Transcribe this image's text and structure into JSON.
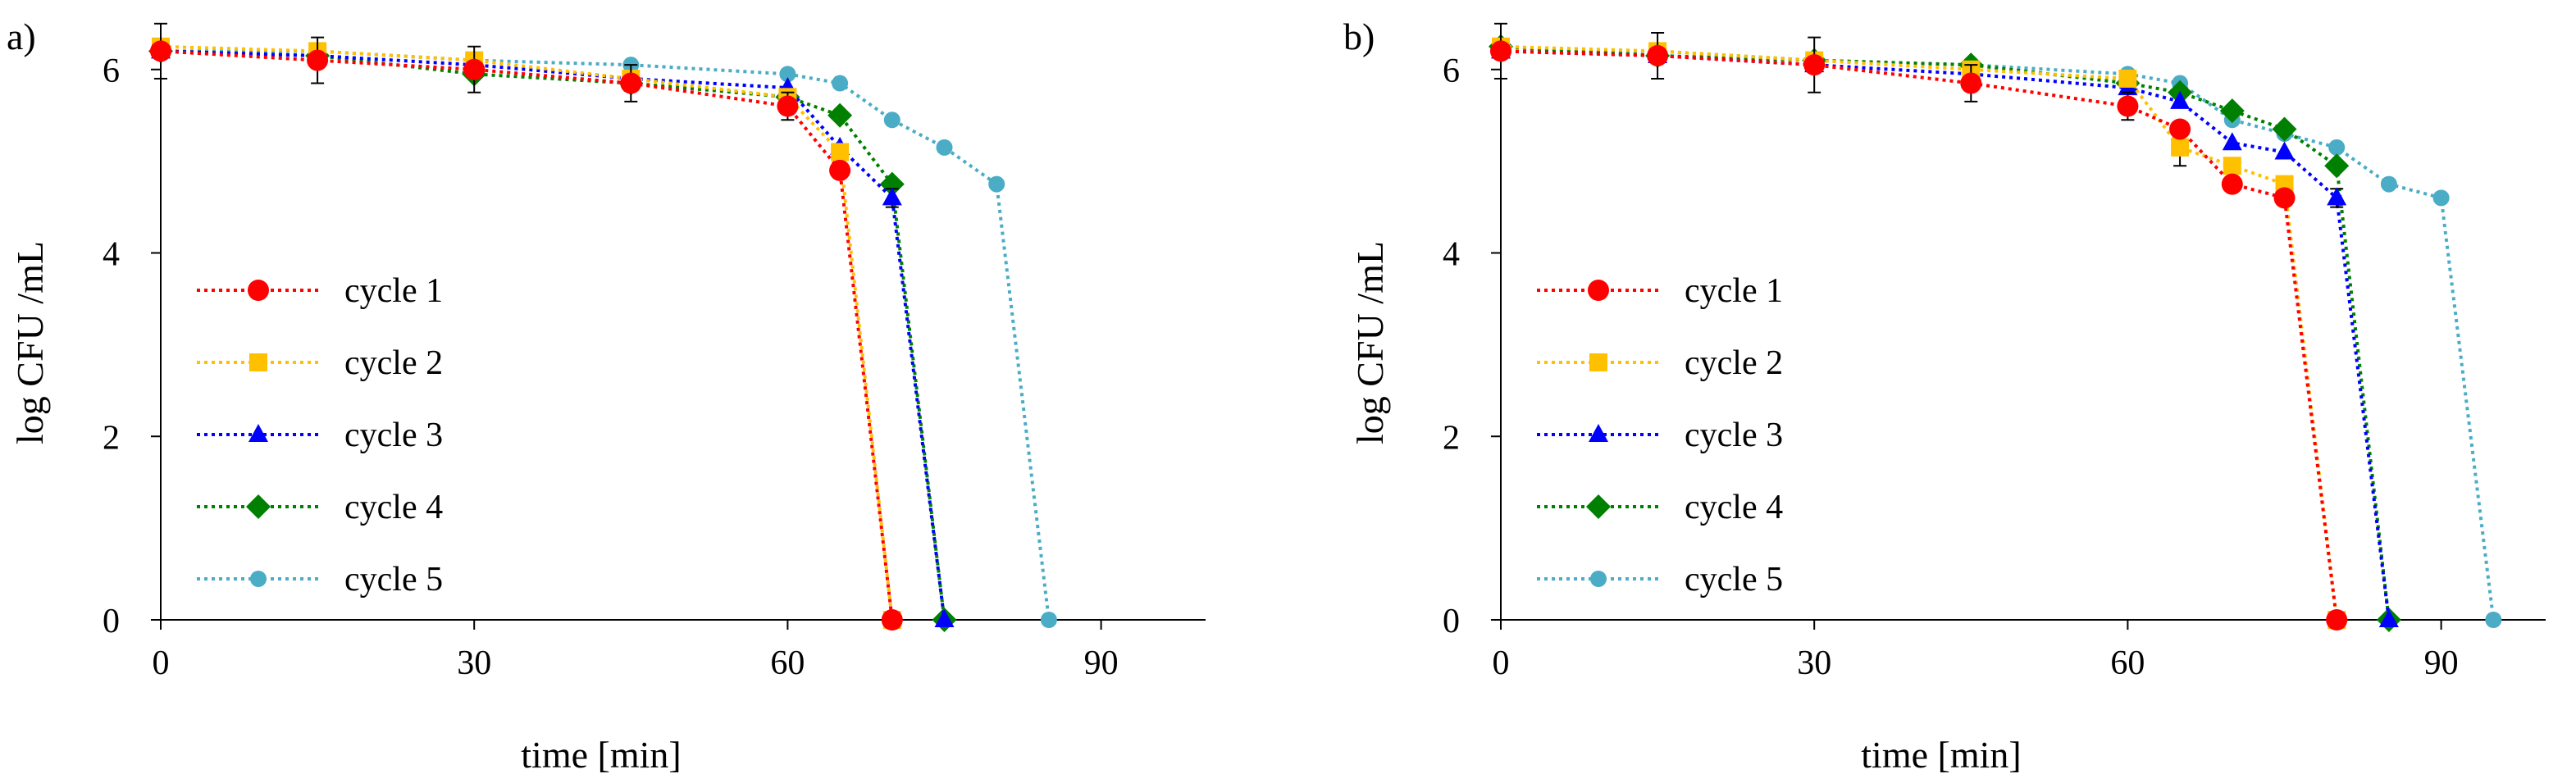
{
  "chart_data": [
    {
      "type": "line",
      "panel_label": "a)",
      "title": "",
      "xlabel": "time [min]",
      "ylabel": "log CFU /mL",
      "xlim": [
        0,
        100
      ],
      "ylim": [
        0,
        6.4
      ],
      "xticks": [
        0,
        30,
        60,
        90
      ],
      "yticks": [
        0,
        2,
        4,
        6
      ],
      "grid": false,
      "legend_position": "left-center",
      "series": [
        {
          "name": "cycle 1",
          "color": "#ff0000",
          "marker": "circle",
          "x": [
            0,
            15,
            30,
            45,
            60,
            65,
            70
          ],
          "y": [
            6.2,
            6.1,
            6.0,
            5.85,
            5.6,
            4.9,
            0
          ],
          "err": [
            0.3,
            0.25,
            0.25,
            0.2,
            0.15,
            0,
            0
          ]
        },
        {
          "name": "cycle 2",
          "color": "#ffc000",
          "marker": "square",
          "x": [
            0,
            15,
            30,
            45,
            60,
            65,
            70
          ],
          "y": [
            6.25,
            6.2,
            6.1,
            5.9,
            5.7,
            5.1,
            0
          ],
          "err": [
            0,
            0,
            0,
            0,
            0,
            0,
            0
          ]
        },
        {
          "name": "cycle 3",
          "color": "#0000ff",
          "marker": "triangle",
          "x": [
            0,
            15,
            30,
            45,
            60,
            65,
            70,
            75
          ],
          "y": [
            6.2,
            6.15,
            6.05,
            5.9,
            5.8,
            5.15,
            4.6,
            0
          ],
          "err": [
            0,
            0,
            0,
            0,
            0,
            0,
            0.1,
            0
          ]
        },
        {
          "name": "cycle 4",
          "color": "#008000",
          "marker": "diamond",
          "x": [
            0,
            15,
            30,
            45,
            60,
            65,
            70,
            75
          ],
          "y": [
            6.2,
            6.15,
            5.95,
            5.85,
            5.7,
            5.5,
            4.75,
            0
          ],
          "err": [
            0,
            0,
            0,
            0,
            0,
            0,
            0,
            0
          ]
        },
        {
          "name": "cycle 5",
          "color": "#4bacc6",
          "marker": "circle-small",
          "x": [
            0,
            15,
            30,
            45,
            60,
            65,
            70,
            75,
            80,
            85
          ],
          "y": [
            6.2,
            6.2,
            6.1,
            6.05,
            5.95,
            5.85,
            5.45,
            5.15,
            4.75,
            0
          ],
          "err": [
            0,
            0,
            0,
            0,
            0,
            0,
            0,
            0,
            0,
            0
          ]
        }
      ]
    },
    {
      "type": "line",
      "panel_label": "b)",
      "title": "",
      "xlabel": "time [min]",
      "ylabel": "log CFU /mL",
      "xlim": [
        0,
        100
      ],
      "ylim": [
        0,
        6.4
      ],
      "xticks": [
        0,
        30,
        60,
        90
      ],
      "yticks": [
        0,
        2,
        4,
        6
      ],
      "grid": false,
      "legend_position": "left-center",
      "series": [
        {
          "name": "cycle 1",
          "color": "#ff0000",
          "marker": "circle",
          "x": [
            0,
            15,
            30,
            45,
            60,
            65,
            70,
            75,
            80
          ],
          "y": [
            6.2,
            6.15,
            6.05,
            5.85,
            5.6,
            5.35,
            4.75,
            4.6,
            0
          ],
          "err": [
            0.3,
            0.25,
            0.3,
            0.2,
            0.15,
            0,
            0,
            0,
            0
          ]
        },
        {
          "name": "cycle 2",
          "color": "#ffc000",
          "marker": "square",
          "x": [
            0,
            15,
            30,
            45,
            60,
            65,
            70,
            75,
            80
          ],
          "y": [
            6.25,
            6.2,
            6.1,
            6.0,
            5.9,
            5.15,
            4.95,
            4.75,
            0
          ],
          "err": [
            0,
            0,
            0,
            0,
            0,
            0.2,
            0,
            0,
            0
          ]
        },
        {
          "name": "cycle 3",
          "color": "#0000ff",
          "marker": "triangle",
          "x": [
            0,
            15,
            30,
            45,
            60,
            65,
            70,
            75,
            80,
            85
          ],
          "y": [
            6.2,
            6.15,
            6.05,
            5.95,
            5.8,
            5.65,
            5.2,
            5.1,
            4.6,
            0
          ],
          "err": [
            0,
            0,
            0,
            0,
            0,
            0,
            0,
            0,
            0.1,
            0
          ]
        },
        {
          "name": "cycle 4",
          "color": "#008000",
          "marker": "diamond",
          "x": [
            0,
            15,
            30,
            45,
            60,
            65,
            70,
            75,
            80,
            85
          ],
          "y": [
            6.25,
            6.15,
            6.1,
            6.05,
            5.85,
            5.75,
            5.55,
            5.35,
            4.95,
            0
          ],
          "err": [
            0,
            0,
            0,
            0,
            0,
            0,
            0,
            0,
            0,
            0
          ]
        },
        {
          "name": "cycle 5",
          "color": "#4bacc6",
          "marker": "circle-small",
          "x": [
            0,
            15,
            30,
            45,
            60,
            65,
            70,
            75,
            80,
            85,
            90,
            95
          ],
          "y": [
            6.2,
            6.2,
            6.1,
            6.05,
            5.95,
            5.85,
            5.45,
            5.3,
            5.15,
            4.75,
            4.6,
            0
          ],
          "err": [
            0,
            0,
            0,
            0,
            0,
            0,
            0,
            0,
            0,
            0,
            0,
            0
          ]
        }
      ]
    }
  ]
}
